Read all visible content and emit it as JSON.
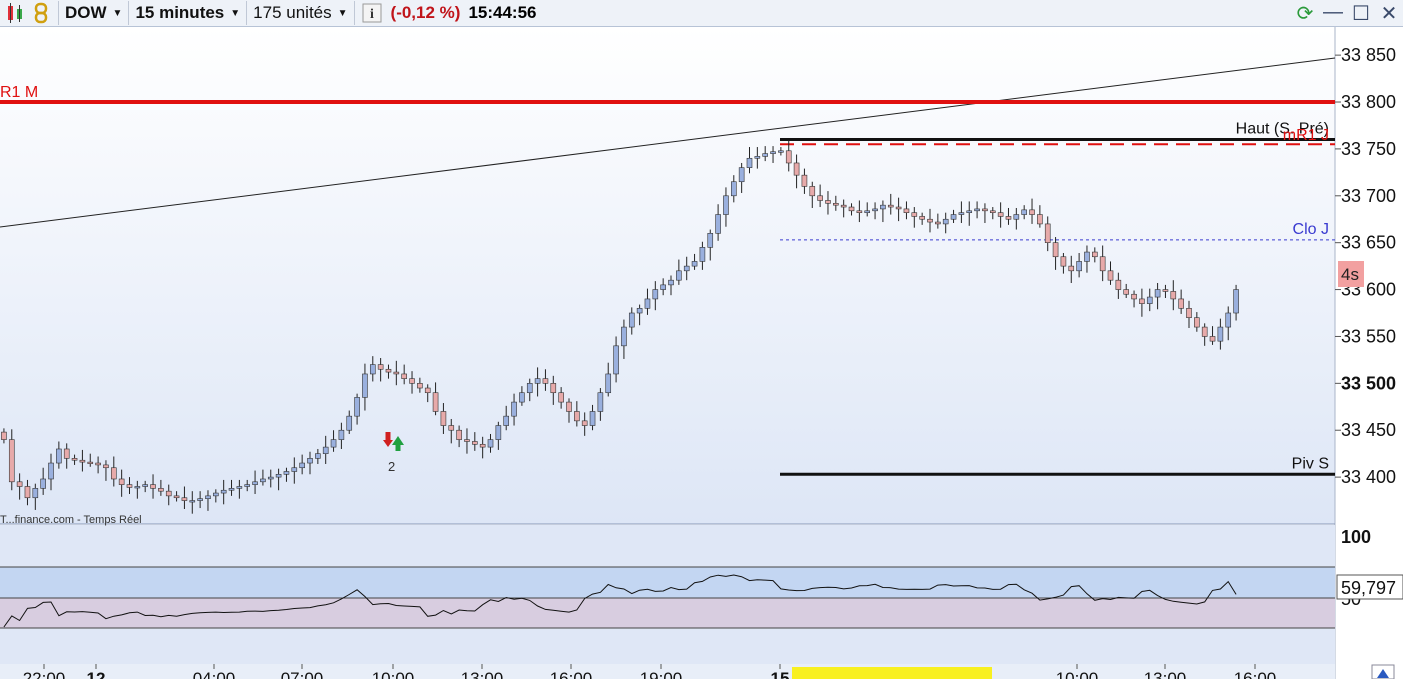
{
  "toolbar": {
    "instrument": "DOW",
    "timeframe": "15 minutes",
    "units": "175 unités",
    "info_icon": "info-icon",
    "change": "(-0,12 %)",
    "time": "15:44:56"
  },
  "chart_data": {
    "type": "candlestick",
    "y_axis": {
      "min": 33350,
      "max": 33880,
      "ticks": [
        "33 850",
        "33 800",
        "33 750",
        "33 700",
        "33 650",
        "33 600",
        "33 550",
        "33 500",
        "33 450",
        "33 400"
      ]
    },
    "levels": [
      {
        "name": "R1 M",
        "value": 33800,
        "color": "#e01010",
        "style": "solid"
      },
      {
        "name": "Haut (S. Pré)",
        "value": 33760,
        "color": "#111111",
        "style": "solid"
      },
      {
        "name": "mR1 J",
        "value": 33755,
        "color": "#e01010",
        "style": "dashed"
      },
      {
        "name": "Clo J",
        "value": 33653,
        "color": "#3a3ad0",
        "style": "dotted"
      },
      {
        "name": "Piv S",
        "value": 33403,
        "color": "#111111",
        "style": "solid"
      }
    ],
    "badge": "4s",
    "watermark": "T...finance.com - Temps Réel",
    "signal_count": "2",
    "rsi": {
      "upper_label": "100",
      "mid_label": "50",
      "current": "59,797"
    },
    "x_labels": [
      "22:00",
      "12",
      "04:00",
      "07:00",
      "10:00",
      "13:00",
      "16:00",
      "19:00",
      "15",
      "10:00",
      "13:00",
      "16:00"
    ],
    "closes": [
      33440,
      33395,
      33390,
      33378,
      33388,
      33398,
      33415,
      33430,
      33420,
      33418,
      33416,
      33415,
      33413,
      33410,
      33398,
      33392,
      33389,
      33390,
      33392,
      33388,
      33385,
      33380,
      33378,
      33375,
      33375,
      33377,
      33380,
      33383,
      33386,
      33388,
      33390,
      33392,
      33395,
      33398,
      33400,
      33403,
      33406,
      33410,
      33415,
      33420,
      33425,
      33432,
      33440,
      33450,
      33465,
      33485,
      33510,
      33520,
      33515,
      33512,
      33510,
      33505,
      33500,
      33495,
      33490,
      33470,
      33455,
      33450,
      33440,
      33438,
      33435,
      33432,
      33440,
      33455,
      33465,
      33480,
      33490,
      33500,
      33505,
      33500,
      33490,
      33480,
      33470,
      33460,
      33455,
      33470,
      33490,
      33510,
      33540,
      33560,
      33575,
      33580,
      33590,
      33600,
      33605,
      33610,
      33620,
      33625,
      33630,
      33645,
      33660,
      33680,
      33700,
      33715,
      33730,
      33740,
      33742,
      33745,
      33747,
      33748,
      33735,
      33722,
      33710,
      33700,
      33695,
      33692,
      33690,
      33688,
      33684,
      33682,
      33684,
      33686,
      33690,
      33688,
      33686,
      33682,
      33678,
      33675,
      33672,
      33670,
      33675,
      33680,
      33682,
      33684,
      33686,
      33684,
      33682,
      33678,
      33675,
      33680,
      33685,
      33680,
      33670,
      33650,
      33635,
      33625,
      33620,
      33630,
      33640,
      33635,
      33620,
      33610,
      33600,
      33595,
      33590,
      33585,
      33592,
      33600,
      33598,
      33590,
      33580,
      33570,
      33560,
      33550,
      33545,
      33560,
      33575,
      33600
    ]
  }
}
